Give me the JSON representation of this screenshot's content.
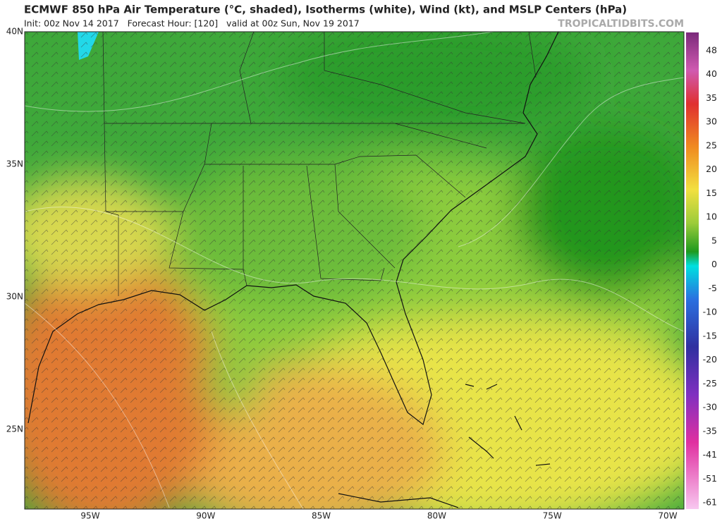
{
  "header": {
    "title": "ECMWF 850 hPa Air Temperature (°C, shaded), Isotherms (white), Wind (kt), and MSLP Centers (hPa)",
    "subtitle": "Init: 00z Nov 14 2017   Forecast Hour: [120]   valid at 00z Sun, Nov 19 2017",
    "source": "TROPICALTIDBITS.COM"
  },
  "map": {
    "lat_labels": [
      "40N",
      "35N",
      "30N",
      "25N"
    ],
    "lon_labels": [
      "95W",
      "90W",
      "85W",
      "80W",
      "75W",
      "70W"
    ]
  },
  "colorbar": {
    "labels": [
      "48",
      "40",
      "35",
      "30",
      "25",
      "20",
      "15",
      "10",
      "5",
      "0",
      "-5",
      "-10",
      "-15",
      "-20",
      "-25",
      "-30",
      "-35",
      "-41",
      "-51",
      "-61"
    ]
  }
}
